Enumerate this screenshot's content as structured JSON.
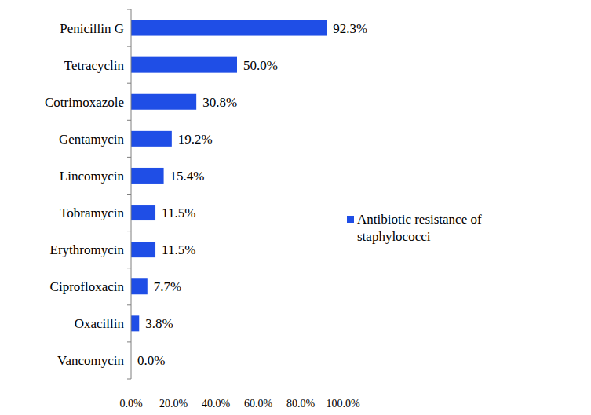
{
  "chart_data": {
    "type": "bar",
    "orientation": "horizontal",
    "categories": [
      "Penicillin G",
      "Tetracyclin",
      "Cotrimoxazole",
      "Gentamycin",
      "Lincomycin",
      "Tobramycin",
      "Erythromycin",
      "Ciprofloxacin",
      "Oxacillin",
      "Vancomycin"
    ],
    "series": [
      {
        "name": "Antibiotic resistance of staphylococci",
        "color": "#1f4ee6",
        "values": [
          92.3,
          50.0,
          30.8,
          19.2,
          15.4,
          11.5,
          11.5,
          7.7,
          3.8,
          0.0
        ],
        "value_labels": [
          "92.3%",
          "50.0%",
          "30.8%",
          "19.2%",
          "15.4%",
          "11.5%",
          "11.5%",
          "7.7%",
          "3.8%",
          "0.0%"
        ]
      }
    ],
    "xlim": [
      0,
      100
    ],
    "xticks": [
      {
        "value": 0,
        "label": "0.0%"
      },
      {
        "value": 20,
        "label": "20.0%"
      },
      {
        "value": 40,
        "label": "40.0%"
      },
      {
        "value": 60,
        "label": "60.0%"
      },
      {
        "value": 80,
        "label": "80.0%"
      },
      {
        "value": 100,
        "label": "100.0%"
      }
    ],
    "data_labels": true,
    "legend": "right",
    "grid": false
  }
}
